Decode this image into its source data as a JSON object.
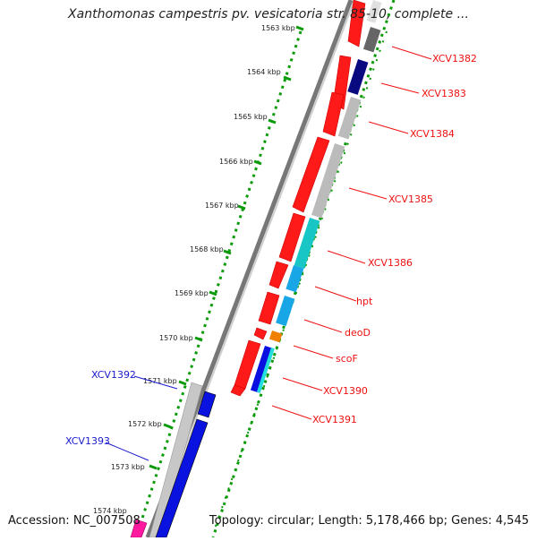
{
  "header": {
    "title": "Xanthomonas campestris pv. vesicatoria str. 85-10, complete ..."
  },
  "footer": {
    "accession": "Accession: NC_007508",
    "topology": "Topology: circular; Length: 5,178,466 bp; Genes: 4,545"
  },
  "ticks": [
    "1563 kbp",
    "1564 kbp",
    "1565 kbp",
    "1566 kbp",
    "1567 kbp",
    "1568 kbp",
    "1569 kbp",
    "1570 kbp",
    "1571 kbp",
    "1572 kbp",
    "1573 kbp",
    "1574 kbp"
  ],
  "colors": {
    "forward_gene": "#ff1a1a",
    "reverse_gene": "#0a12e0",
    "backbone": "#777777",
    "gc_track": "#0a9a0a",
    "label_forward": "#ee1111",
    "label_reverse": "#1a1acc",
    "tick_label": "#222222"
  },
  "genes_right": [
    {
      "id": "XCV1382",
      "label": "XCV1382"
    },
    {
      "id": "XCV1383",
      "label": "XCV1383"
    },
    {
      "id": "XCV1384",
      "label": "XCV1384"
    },
    {
      "id": "XCV1385",
      "label": "XCV1385"
    },
    {
      "id": "XCV1386",
      "label": "XCV1386"
    },
    {
      "id": "hpt",
      "label": "hpt"
    },
    {
      "id": "deoD",
      "label": "deoD"
    },
    {
      "id": "scoF",
      "label": "scoF"
    },
    {
      "id": "XCV1390",
      "label": "XCV1390"
    },
    {
      "id": "XCV1391",
      "label": "XCV1391"
    }
  ],
  "genes_left": [
    {
      "id": "XCV1392",
      "label": "XCV1392"
    },
    {
      "id": "XCV1393",
      "label": "XCV1393"
    }
  ]
}
